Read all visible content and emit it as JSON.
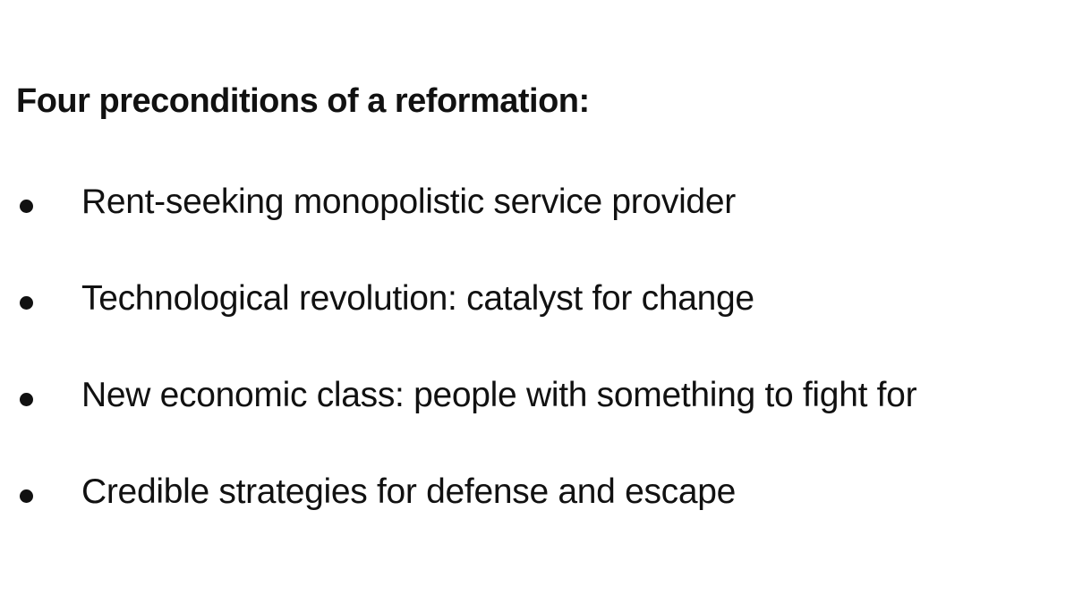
{
  "heading": "Four preconditions of a reformation:",
  "bullets": [
    "Rent-seeking monopolistic service provider",
    "Technological revolution: catalyst for change",
    "New economic class: people with something to fight for",
    "Credible strategies for defense and escape"
  ]
}
